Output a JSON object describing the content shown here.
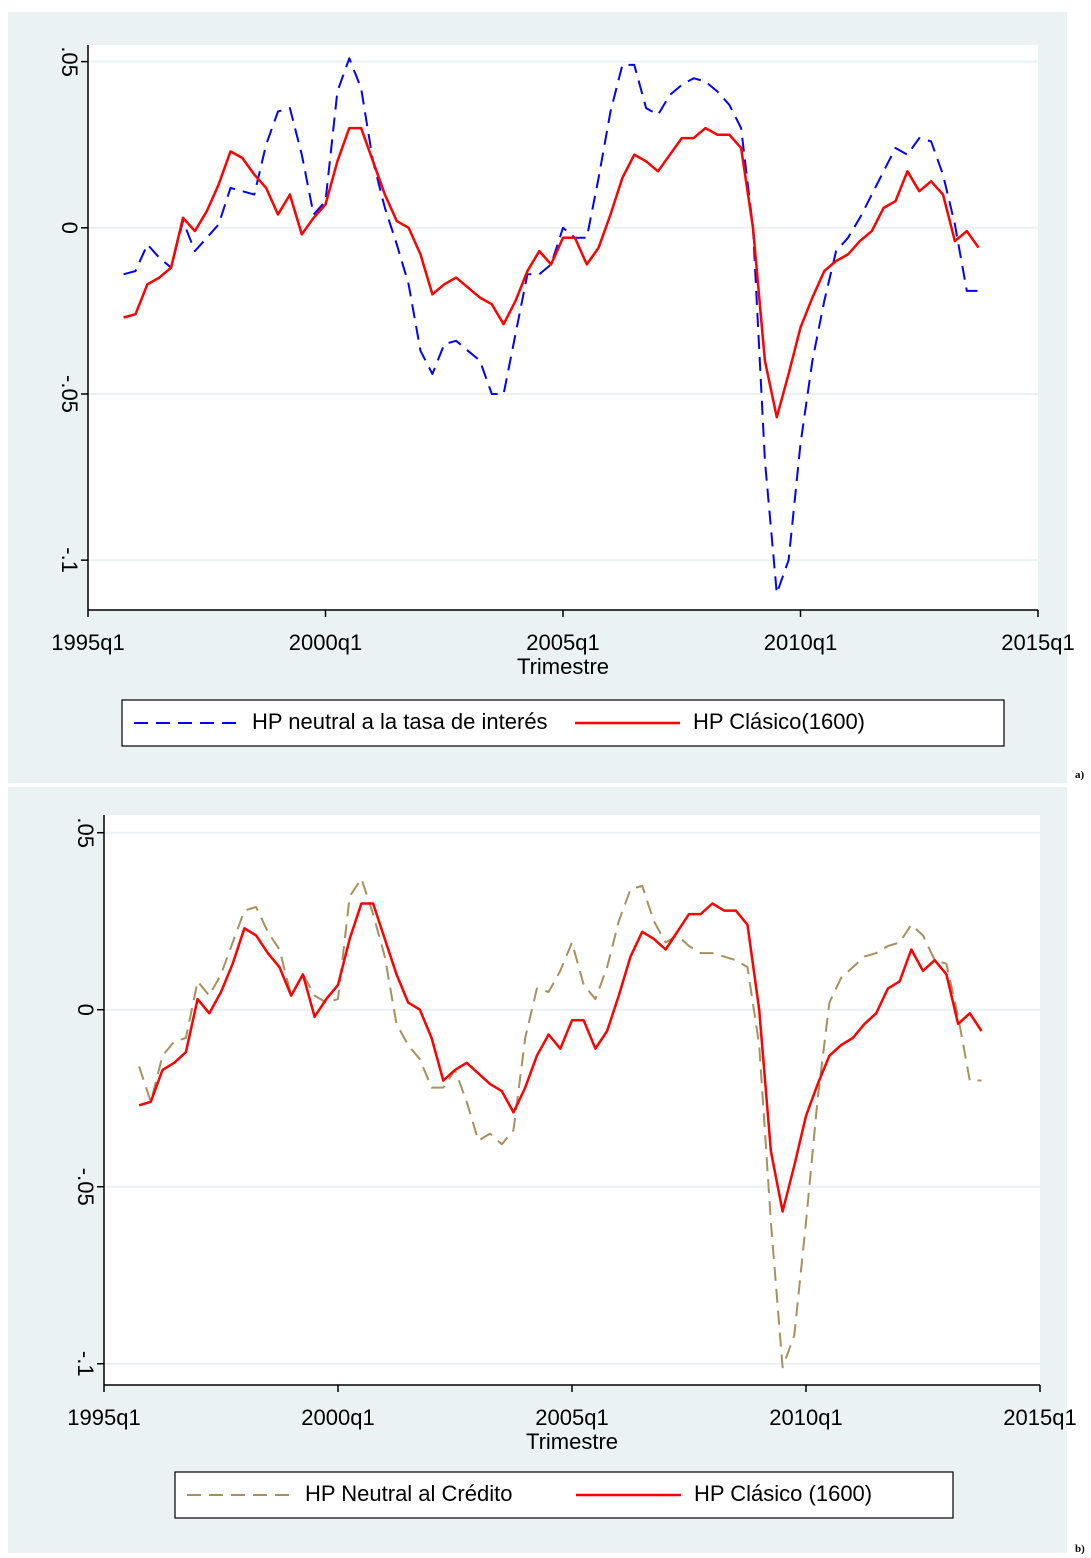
{
  "chart_data": [
    {
      "type": "line",
      "panel_label": "a)",
      "xlabel": "Trimestre",
      "xlim": [
        "1995q1",
        "2015q1"
      ],
      "xticks": [
        "1995q1",
        "2000q1",
        "2005q1",
        "2010q1",
        "2015q1"
      ],
      "ylim": [
        -0.115,
        0.055
      ],
      "yticks": [
        {
          "value": 0.05,
          "label": ".05"
        },
        0,
        {
          "value": -0.05,
          "label": "-.05"
        },
        {
          "value": -0.1,
          "label": "-.1"
        }
      ],
      "grid": true,
      "x": [
        "1995q4",
        "1996q1",
        "1996q2",
        "1996q3",
        "1996q4",
        "1997q1",
        "1997q2",
        "1997q3",
        "1997q4",
        "1998q1",
        "1998q2",
        "1998q3",
        "1998q4",
        "1999q1",
        "1999q2",
        "1999q3",
        "1999q4",
        "2000q1",
        "2000q2",
        "2000q3",
        "2000q4",
        "2001q1",
        "2001q2",
        "2001q3",
        "2001q4",
        "2002q1",
        "2002q2",
        "2002q3",
        "2002q4",
        "2003q1",
        "2003q2",
        "2003q3",
        "2003q4",
        "2004q1",
        "2004q2",
        "2004q3",
        "2004q4",
        "2005q1",
        "2005q2",
        "2005q3",
        "2005q4",
        "2006q1",
        "2006q2",
        "2006q3",
        "2006q4",
        "2007q1",
        "2007q2",
        "2007q3",
        "2007q4",
        "2008q1",
        "2008q2",
        "2008q3",
        "2008q4",
        "2009q1",
        "2009q2",
        "2009q3",
        "2009q4",
        "2010q1",
        "2010q2",
        "2010q3",
        "2010q4",
        "2011q1",
        "2011q2",
        "2011q3",
        "2011q4",
        "2012q1",
        "2012q2",
        "2012q3",
        "2012q4",
        "2013q1",
        "2013q2",
        "2013q3",
        "2013q4"
      ],
      "series": [
        {
          "name": "HP neutral a la tasa de interés",
          "color": "#0000ff",
          "style": "dashed",
          "values": [
            -0.014,
            -0.013,
            -0.005,
            -0.009,
            -0.012,
            0.002,
            -0.007,
            -0.003,
            0.001,
            0.012,
            0.011,
            0.01,
            0.025,
            0.035,
            0.036,
            0.022,
            0.004,
            0.008,
            0.041,
            0.051,
            0.042,
            0.02,
            0.006,
            -0.005,
            -0.017,
            -0.037,
            -0.044,
            -0.035,
            -0.034,
            -0.037,
            -0.04,
            -0.05,
            -0.05,
            -0.032,
            -0.014,
            -0.014,
            -0.011,
            0.0,
            -0.003,
            -0.003,
            0.015,
            0.035,
            0.049,
            0.049,
            0.036,
            0.034,
            0.04,
            0.043,
            0.045,
            0.044,
            0.041,
            0.037,
            0.03,
            0.0,
            -0.07,
            -0.11,
            -0.1,
            -0.065,
            -0.04,
            -0.022,
            -0.007,
            -0.003,
            0.003,
            0.01,
            0.017,
            0.024,
            0.022,
            0.027,
            0.026,
            0.016,
            0.001,
            -0.019,
            -0.019
          ]
        },
        {
          "name": "HP Clásico(1600)",
          "color": "#ff0000",
          "style": "solid",
          "values": [
            -0.027,
            -0.026,
            -0.017,
            -0.015,
            -0.012,
            0.003,
            -0.001,
            0.005,
            0.013,
            0.023,
            0.021,
            0.016,
            0.012,
            0.004,
            0.01,
            -0.002,
            0.003,
            0.007,
            0.02,
            0.03,
            0.03,
            0.02,
            0.01,
            0.002,
            0.0,
            -0.008,
            -0.02,
            -0.017,
            -0.015,
            -0.018,
            -0.021,
            -0.023,
            -0.029,
            -0.022,
            -0.013,
            -0.007,
            -0.011,
            -0.003,
            -0.003,
            -0.011,
            -0.006,
            0.004,
            0.015,
            0.022,
            0.02,
            0.017,
            0.022,
            0.027,
            0.027,
            0.03,
            0.028,
            0.028,
            0.024,
            0.0,
            -0.04,
            -0.057,
            -0.044,
            -0.03,
            -0.021,
            -0.013,
            -0.01,
            -0.008,
            -0.004,
            -0.001,
            0.006,
            0.008,
            0.017,
            0.011,
            0.014,
            0.01,
            -0.004,
            -0.001,
            -0.006
          ]
        }
      ]
    },
    {
      "type": "line",
      "panel_label": "b)",
      "xlabel": "Trimestre",
      "xlim": [
        "1995q1",
        "2015q1"
      ],
      "xticks": [
        "1995q1",
        "2000q1",
        "2005q1",
        "2010q1",
        "2015q1"
      ],
      "ylim": [
        -0.106,
        0.055
      ],
      "yticks": [
        {
          "value": 0.05,
          "label": ".05"
        },
        0,
        {
          "value": -0.05,
          "label": "-.05"
        },
        {
          "value": -0.1,
          "label": "-.1"
        }
      ],
      "grid": true,
      "x": [
        "1995q4",
        "1996q1",
        "1996q2",
        "1996q3",
        "1996q4",
        "1997q1",
        "1997q2",
        "1997q3",
        "1997q4",
        "1998q1",
        "1998q2",
        "1998q3",
        "1998q4",
        "1999q1",
        "1999q2",
        "1999q3",
        "1999q4",
        "2000q1",
        "2000q2",
        "2000q3",
        "2000q4",
        "2001q1",
        "2001q2",
        "2001q3",
        "2001q4",
        "2002q1",
        "2002q2",
        "2002q3",
        "2002q4",
        "2003q1",
        "2003q2",
        "2003q3",
        "2003q4",
        "2004q1",
        "2004q2",
        "2004q3",
        "2004q4",
        "2005q1",
        "2005q2",
        "2005q3",
        "2005q4",
        "2006q1",
        "2006q2",
        "2006q3",
        "2006q4",
        "2007q1",
        "2007q2",
        "2007q3",
        "2007q4",
        "2008q1",
        "2008q2",
        "2008q3",
        "2008q4",
        "2009q1",
        "2009q2",
        "2009q3",
        "2009q4",
        "2010q1",
        "2010q2",
        "2010q3",
        "2010q4",
        "2011q1",
        "2011q2",
        "2011q3",
        "2011q4",
        "2012q1",
        "2012q2",
        "2012q3",
        "2012q4",
        "2013q1",
        "2013q2",
        "2013q3",
        "2013q4"
      ],
      "series": [
        {
          "name": "HP Neutral al Crédito",
          "color": "#a89060",
          "style": "dashed",
          "values": [
            -0.016,
            -0.026,
            -0.013,
            -0.009,
            -0.008,
            0.008,
            0.004,
            0.01,
            0.019,
            0.028,
            0.029,
            0.022,
            0.017,
            0.004,
            0.01,
            0.004,
            0.002,
            0.003,
            0.032,
            0.037,
            0.027,
            0.015,
            -0.004,
            -0.01,
            -0.014,
            -0.022,
            -0.022,
            -0.017,
            -0.026,
            -0.037,
            -0.035,
            -0.038,
            -0.034,
            -0.008,
            0.006,
            0.005,
            0.011,
            0.019,
            0.007,
            0.003,
            0.012,
            0.025,
            0.034,
            0.035,
            0.025,
            0.019,
            0.021,
            0.018,
            0.016,
            0.016,
            0.015,
            0.014,
            0.012,
            -0.01,
            -0.06,
            -0.101,
            -0.092,
            -0.06,
            -0.025,
            0.002,
            0.009,
            0.012,
            0.015,
            0.016,
            0.018,
            0.019,
            0.024,
            0.021,
            0.014,
            0.013,
            -0.002,
            -0.02,
            -0.02
          ]
        },
        {
          "name": "HP Clásico (1600)",
          "color": "#ff0000",
          "style": "solid",
          "values": [
            -0.027,
            -0.026,
            -0.017,
            -0.015,
            -0.012,
            0.003,
            -0.001,
            0.005,
            0.013,
            0.023,
            0.021,
            0.016,
            0.012,
            0.004,
            0.01,
            -0.002,
            0.003,
            0.007,
            0.02,
            0.03,
            0.03,
            0.02,
            0.01,
            0.002,
            0.0,
            -0.008,
            -0.02,
            -0.017,
            -0.015,
            -0.018,
            -0.021,
            -0.023,
            -0.029,
            -0.022,
            -0.013,
            -0.007,
            -0.011,
            -0.003,
            -0.003,
            -0.011,
            -0.006,
            0.004,
            0.015,
            0.022,
            0.02,
            0.017,
            0.022,
            0.027,
            0.027,
            0.03,
            0.028,
            0.028,
            0.024,
            0.0,
            -0.04,
            -0.057,
            -0.044,
            -0.03,
            -0.021,
            -0.013,
            -0.01,
            -0.008,
            -0.004,
            -0.001,
            0.006,
            0.008,
            0.017,
            0.011,
            0.014,
            0.01,
            -0.004,
            -0.001,
            -0.006
          ]
        }
      ]
    }
  ]
}
